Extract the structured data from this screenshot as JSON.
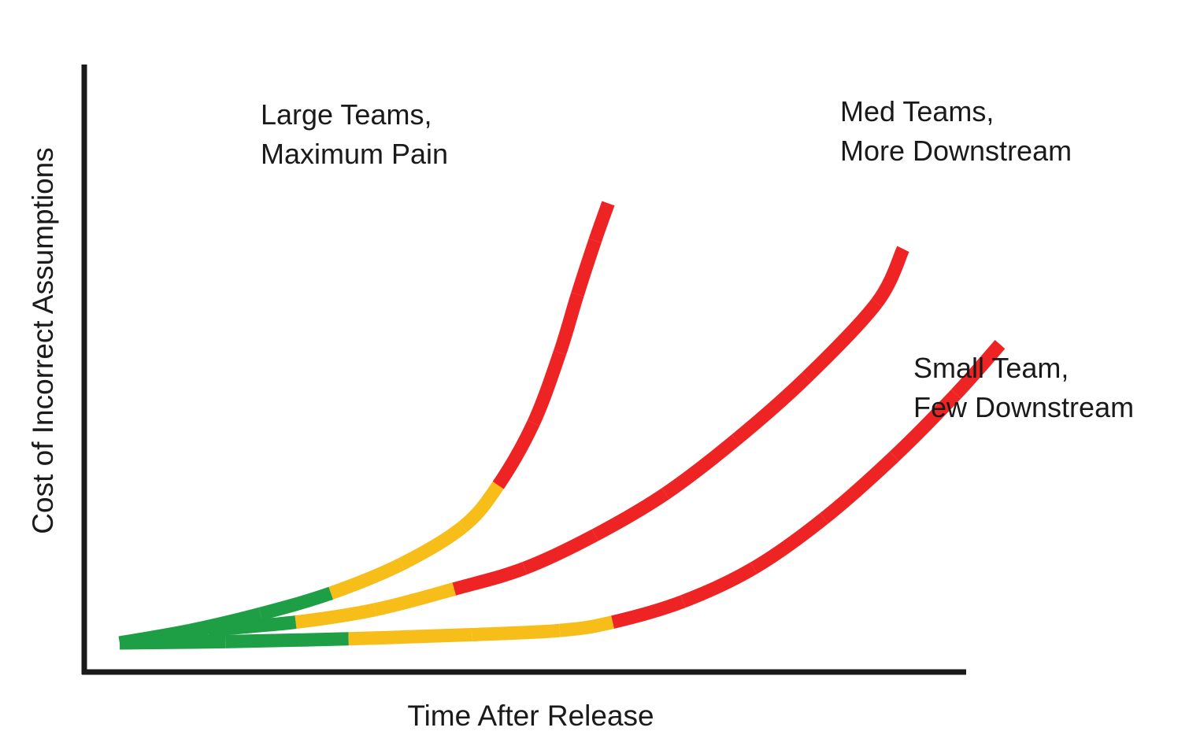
{
  "chart_data": {
    "type": "line",
    "title": "",
    "xlabel": "Time After Release",
    "ylabel": "Cost of Incorrect Assumptions",
    "grid": false,
    "legend": "none",
    "colors": {
      "green": "#1e9e45",
      "yellow": "#f7bd19",
      "red": "#ee2324",
      "axis": "#1a1a1a"
    },
    "series": [
      {
        "label_lines": [
          "Large Teams,",
          "Maximum Pain"
        ],
        "x": [
          0,
          0.08,
          0.16,
          0.24,
          0.32,
          0.39,
          0.43,
          0.47,
          0.5,
          0.52,
          0.54,
          0.555
        ],
        "y": [
          0,
          0.03,
          0.07,
          0.12,
          0.19,
          0.28,
          0.38,
          0.53,
          0.7,
          0.84,
          0.97,
          1.06
        ],
        "phase_colors": [
          "green",
          "green",
          "green",
          "yellow",
          "yellow",
          "yellow",
          "red",
          "red",
          "red",
          "red",
          "red",
          "red"
        ]
      },
      {
        "label_lines": [
          "Med Teams,",
          "More Downstream"
        ],
        "x": [
          0,
          0.1,
          0.2,
          0.29,
          0.38,
          0.46,
          0.54,
          0.62,
          0.7,
          0.78,
          0.86,
          0.89
        ],
        "y": [
          0,
          0.03,
          0.05,
          0.08,
          0.13,
          0.18,
          0.26,
          0.36,
          0.49,
          0.64,
          0.82,
          0.95
        ],
        "phase_colors": [
          "green",
          "green",
          "yellow",
          "yellow",
          "red",
          "red",
          "red",
          "red",
          "red",
          "red",
          "red",
          "red"
        ]
      },
      {
        "label_lines": [
          "Small Team,",
          "Few Downstream"
        ],
        "x": [
          0,
          0.12,
          0.26,
          0.4,
          0.5,
          0.56,
          0.64,
          0.72,
          0.8,
          0.88,
          0.95,
          1.0
        ],
        "y": [
          0,
          0.003,
          0.01,
          0.02,
          0.03,
          0.05,
          0.1,
          0.18,
          0.3,
          0.45,
          0.6,
          0.72
        ],
        "phase_colors": [
          "green",
          "green",
          "yellow",
          "yellow",
          "yellow",
          "red",
          "red",
          "red",
          "red",
          "red",
          "red",
          "red"
        ]
      }
    ]
  }
}
